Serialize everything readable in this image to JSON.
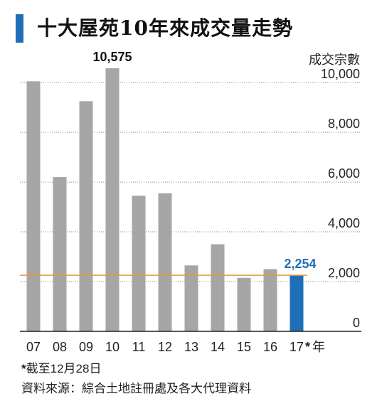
{
  "header": {
    "title": "十大屋苑10年來成交量走勢"
  },
  "chart_data": {
    "type": "bar",
    "categories": [
      "07",
      "08",
      "09",
      "10",
      "11",
      "12",
      "13",
      "14",
      "15",
      "16",
      "17"
    ],
    "values": [
      10050,
      6200,
      9250,
      10575,
      5450,
      5550,
      2650,
      3500,
      2150,
      2500,
      2254
    ],
    "highlight_index": 10,
    "ylabel": "成交宗數",
    "x_suffix": "年",
    "x_last_marker": "*",
    "ylim": [
      0,
      10575
    ],
    "yticks": [
      0,
      2000,
      4000,
      6000,
      8000,
      10000
    ],
    "ytick_labels": [
      "0",
      "2,000",
      "4,000",
      "6,000",
      "8,000",
      "10,000"
    ],
    "grid": true,
    "annotations": [
      {
        "index": 3,
        "label": "10,575"
      },
      {
        "index": 10,
        "label": "2,254"
      }
    ],
    "reference_line": {
      "value": 2254
    },
    "colors": {
      "bar": "#a6a6a6",
      "highlight": "#1f6fb8",
      "reference_line": "#e8963a",
      "annotation_highlight": "#1f6fb8"
    }
  },
  "notes": {
    "footnote_mark": "*",
    "footnote": "截至12月28日",
    "source": "資料來源：綜合土地註冊處及各大代理資料"
  }
}
